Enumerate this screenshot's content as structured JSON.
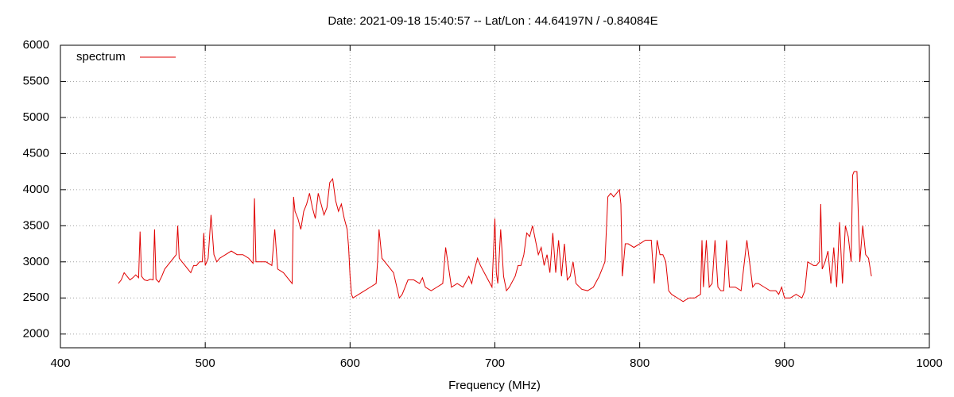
{
  "chart_data": {
    "type": "line",
    "title": "Date: 2021-09-18 15:40:57  --  Lat/Lon : 44.64197N / -0.84084E",
    "x_label": "Frequency (MHz)",
    "legend": "top left",
    "grid": true,
    "xlim": [
      400,
      1000
    ],
    "xticks": [
      400,
      500,
      600,
      700,
      800,
      900,
      1000
    ],
    "ylim": [
      1810,
      6000
    ],
    "yticks": [
      2000,
      2500,
      3000,
      3500,
      4000,
      4500,
      5000,
      5500,
      6000
    ],
    "x": [
      440,
      442,
      444,
      446,
      448,
      450,
      452,
      454,
      455,
      456,
      458,
      460,
      462,
      464,
      465,
      466,
      468,
      470,
      472,
      474,
      476,
      478,
      480,
      481,
      482,
      484,
      486,
      488,
      490,
      492,
      494,
      496,
      498,
      499,
      500,
      502,
      504,
      506,
      508,
      510,
      514,
      518,
      522,
      526,
      530,
      533,
      534,
      535,
      538,
      542,
      546,
      548,
      550,
      554,
      558,
      560,
      561,
      562,
      564,
      566,
      568,
      570,
      572,
      574,
      576,
      578,
      580,
      582,
      584,
      586,
      588,
      590,
      592,
      594,
      596,
      598,
      599,
      600,
      601,
      602,
      606,
      610,
      614,
      618,
      619,
      620,
      622,
      626,
      630,
      634,
      636,
      640,
      644,
      648,
      650,
      652,
      656,
      660,
      664,
      666,
      670,
      674,
      678,
      682,
      684,
      686,
      688,
      690,
      694,
      698,
      700,
      701,
      702,
      704,
      706,
      708,
      710,
      714,
      716,
      718,
      720,
      722,
      724,
      726,
      728,
      730,
      732,
      734,
      736,
      738,
      740,
      742,
      744,
      746,
      748,
      750,
      752,
      754,
      756,
      760,
      764,
      768,
      772,
      776,
      778,
      780,
      782,
      784,
      786,
      787,
      788,
      790,
      792,
      796,
      800,
      804,
      808,
      810,
      812,
      814,
      816,
      818,
      820,
      822,
      826,
      830,
      834,
      838,
      842,
      843,
      844,
      846,
      848,
      850,
      852,
      854,
      856,
      858,
      860,
      862,
      866,
      870,
      874,
      878,
      880,
      882,
      886,
      890,
      894,
      896,
      898,
      900,
      904,
      908,
      912,
      914,
      916,
      920,
      922,
      924,
      925,
      926,
      928,
      930,
      932,
      934,
      936,
      938,
      940,
      942,
      944,
      946,
      947,
      948,
      950,
      952,
      954,
      956,
      958,
      960
    ],
    "series": [
      {
        "name": "spectrum",
        "color": "#e00000",
        "values": [
          2700,
          2750,
          2850,
          2800,
          2750,
          2780,
          2820,
          2780,
          3420,
          2800,
          2750,
          2740,
          2760,
          2750,
          3450,
          2760,
          2720,
          2800,
          2900,
          2950,
          3000,
          3050,
          3100,
          3500,
          3050,
          3000,
          2950,
          2900,
          2850,
          2950,
          2950,
          3000,
          3000,
          3400,
          2950,
          3050,
          3650,
          3100,
          3000,
          3050,
          3100,
          3150,
          3100,
          3100,
          3050,
          2980,
          3880,
          3000,
          3000,
          3000,
          2950,
          3450,
          2900,
          2850,
          2750,
          2700,
          3900,
          3700,
          3600,
          3450,
          3700,
          3800,
          3950,
          3750,
          3600,
          3950,
          3800,
          3650,
          3750,
          4100,
          4150,
          3850,
          3700,
          3800,
          3600,
          3450,
          3200,
          2800,
          2550,
          2500,
          2550,
          2600,
          2650,
          2700,
          3000,
          3450,
          3050,
          2950,
          2850,
          2500,
          2550,
          2750,
          2750,
          2700,
          2780,
          2650,
          2600,
          2650,
          2700,
          3200,
          2650,
          2700,
          2650,
          2800,
          2700,
          2900,
          3050,
          2950,
          2800,
          2650,
          3600,
          2850,
          2700,
          3450,
          2800,
          2600,
          2650,
          2800,
          2950,
          2950,
          3100,
          3400,
          3350,
          3500,
          3300,
          3100,
          3200,
          2950,
          3100,
          2850,
          3400,
          2850,
          3300,
          2800,
          3250,
          2750,
          2800,
          3000,
          2700,
          2620,
          2600,
          2650,
          2800,
          3000,
          3900,
          3950,
          3900,
          3950,
          4000,
          3800,
          2800,
          3250,
          3250,
          3200,
          3250,
          3300,
          3300,
          2700,
          3300,
          3100,
          3100,
          3000,
          2600,
          2550,
          2500,
          2450,
          2500,
          2500,
          2550,
          3300,
          2650,
          3300,
          2650,
          2700,
          3300,
          2650,
          2600,
          2600,
          3300,
          2650,
          2650,
          2600,
          3300,
          2650,
          2700,
          2700,
          2650,
          2600,
          2600,
          2550,
          2650,
          2500,
          2500,
          2550,
          2500,
          2600,
          3000,
          2950,
          2950,
          3000,
          3800,
          2900,
          3000,
          3150,
          2700,
          3200,
          2650,
          3550,
          2700,
          3500,
          3350,
          3000,
          4200,
          4250,
          4250,
          3000,
          3500,
          3100,
          3050,
          2800
        ]
      }
    ]
  }
}
